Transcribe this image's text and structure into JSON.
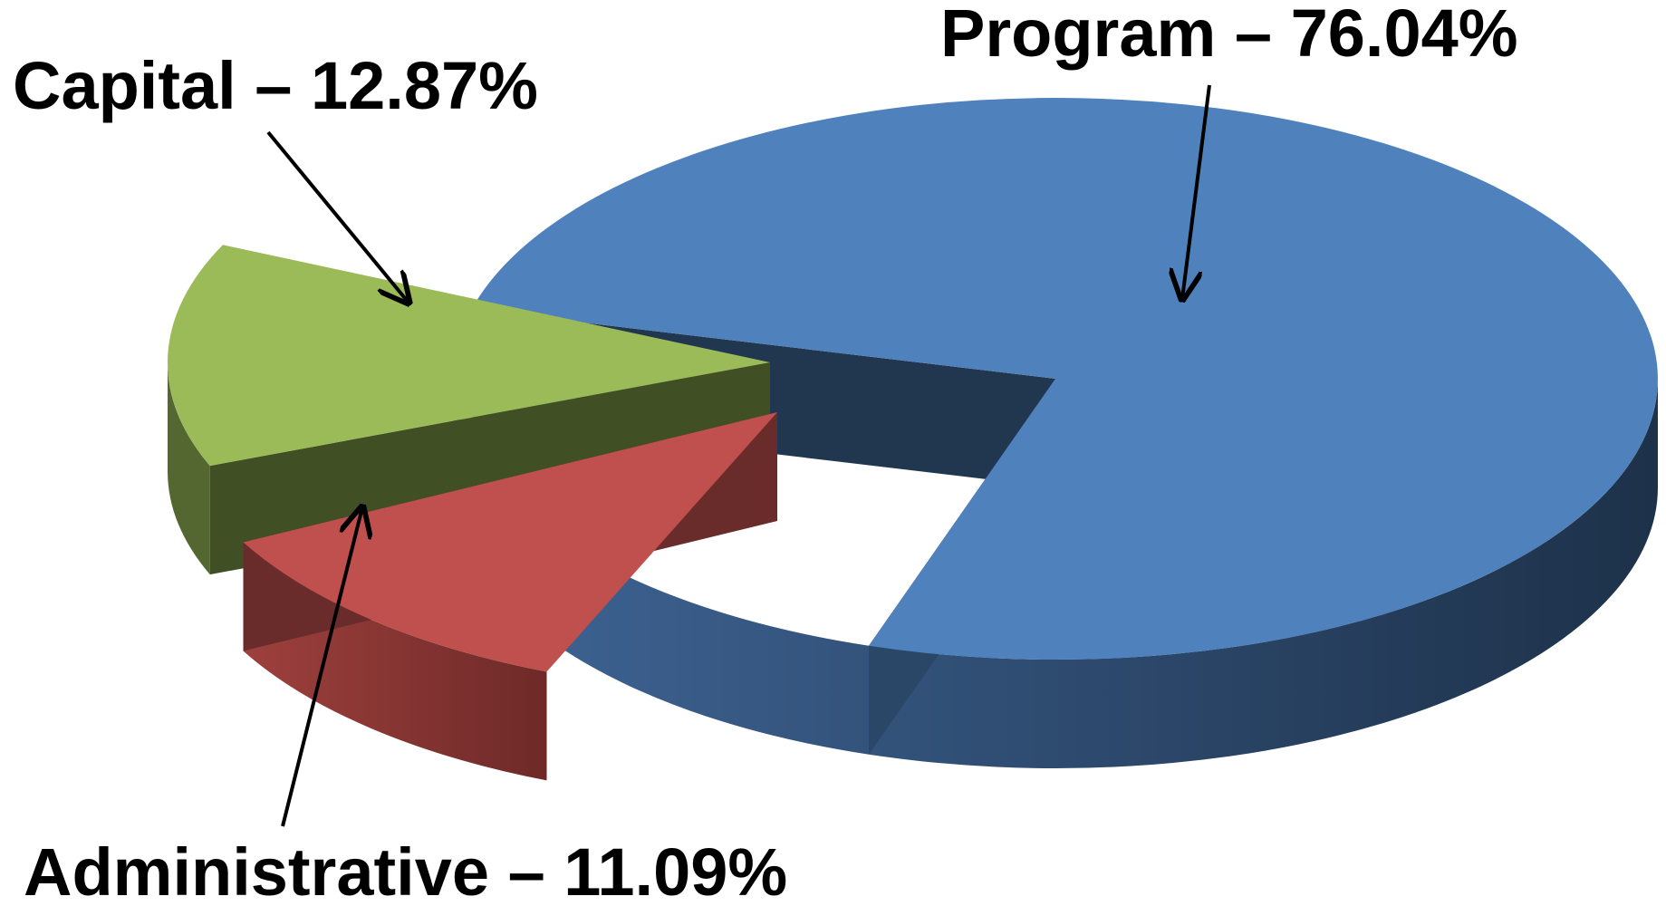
{
  "chart_data": {
    "type": "pie",
    "style": "3d-exploded",
    "categories": [
      "Program",
      "Capital",
      "Administrative"
    ],
    "values": [
      76.04,
      12.87,
      11.09
    ],
    "unit": "%",
    "labels": [
      "Program – 76.04%",
      "Capital – 12.87%",
      "Administrative – 11.09%"
    ],
    "colors": {
      "Program": "#4F81BD",
      "Capital": "#9BBB59",
      "Administrative": "#C0504D"
    },
    "legend": "none"
  }
}
